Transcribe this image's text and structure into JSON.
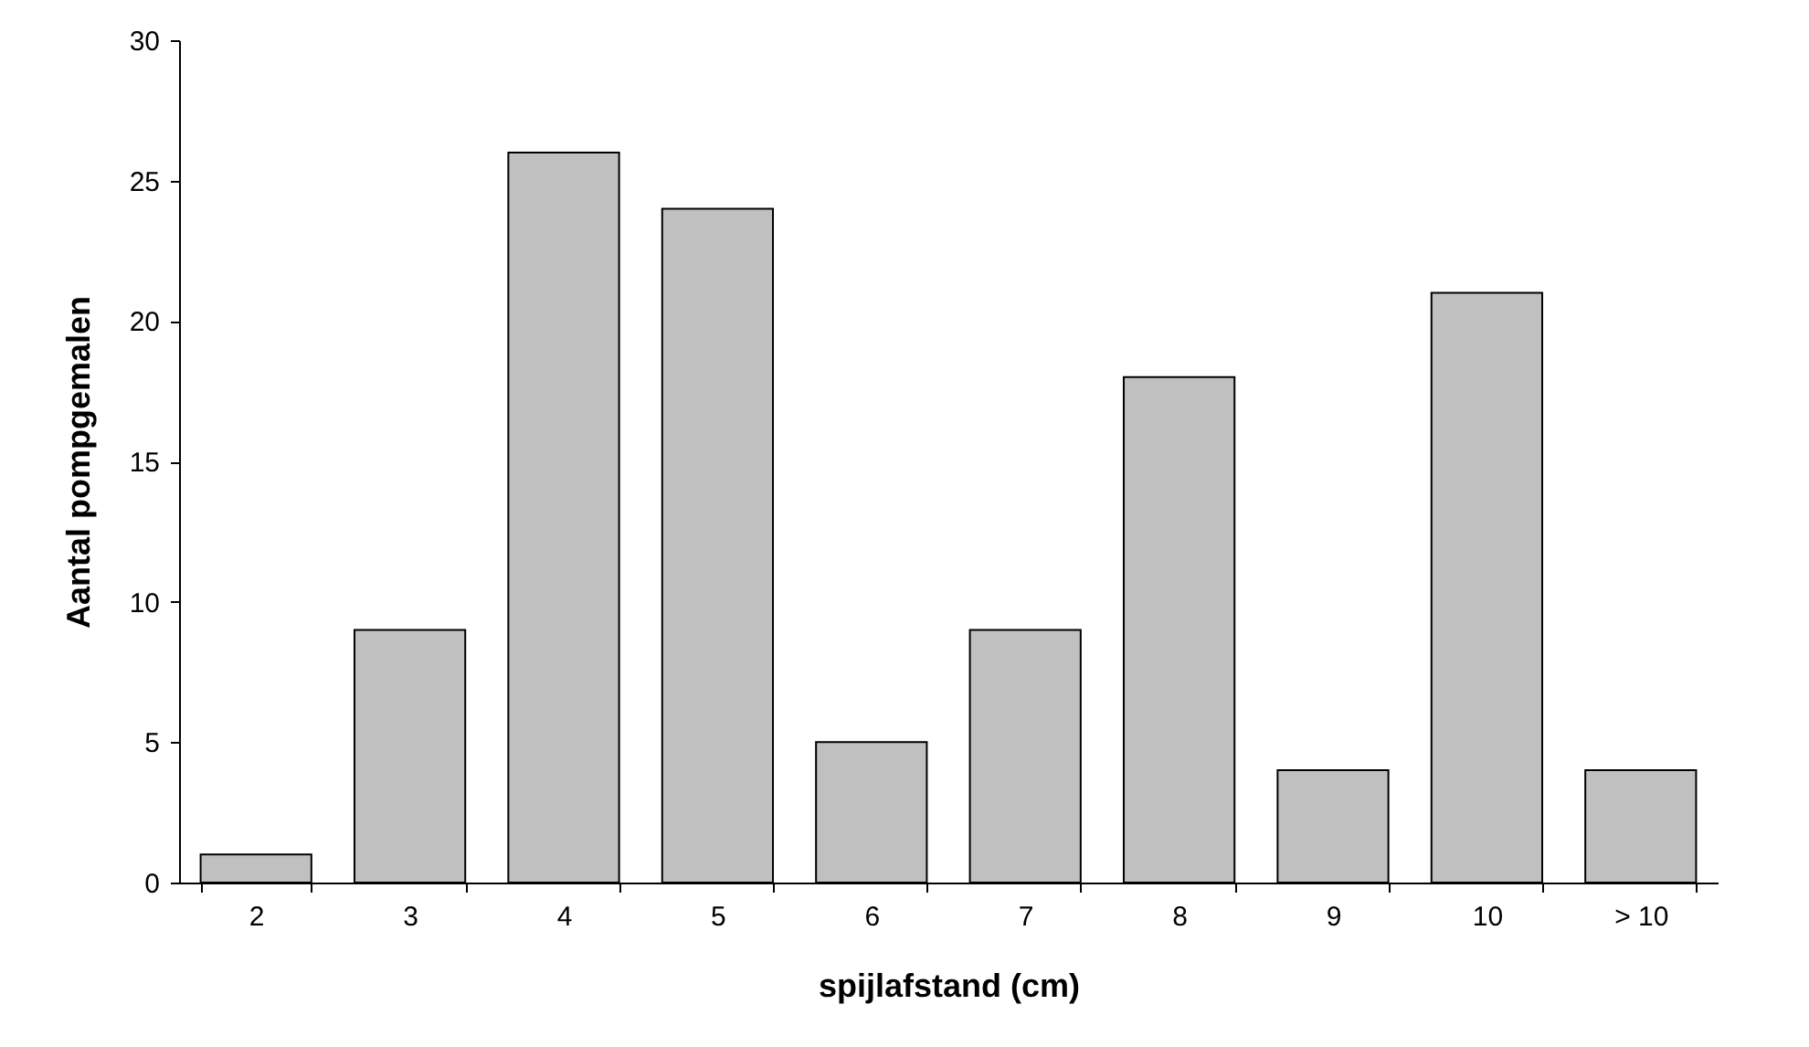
{
  "chart_data": {
    "type": "bar",
    "xlabel": "spijlafstand (cm)",
    "ylabel": "Aantal pompgemalen",
    "categories": [
      "2",
      "3",
      "4",
      "5",
      "6",
      "7",
      "8",
      "9",
      "10",
      "> 10"
    ],
    "values": [
      1,
      9,
      26,
      24,
      5,
      9,
      18,
      4,
      21,
      4
    ],
    "color": "#c0c0c0",
    "ylim": [
      0,
      30
    ],
    "yticks": [
      0,
      5,
      10,
      15,
      20,
      25,
      30
    ],
    "grid": false
  }
}
